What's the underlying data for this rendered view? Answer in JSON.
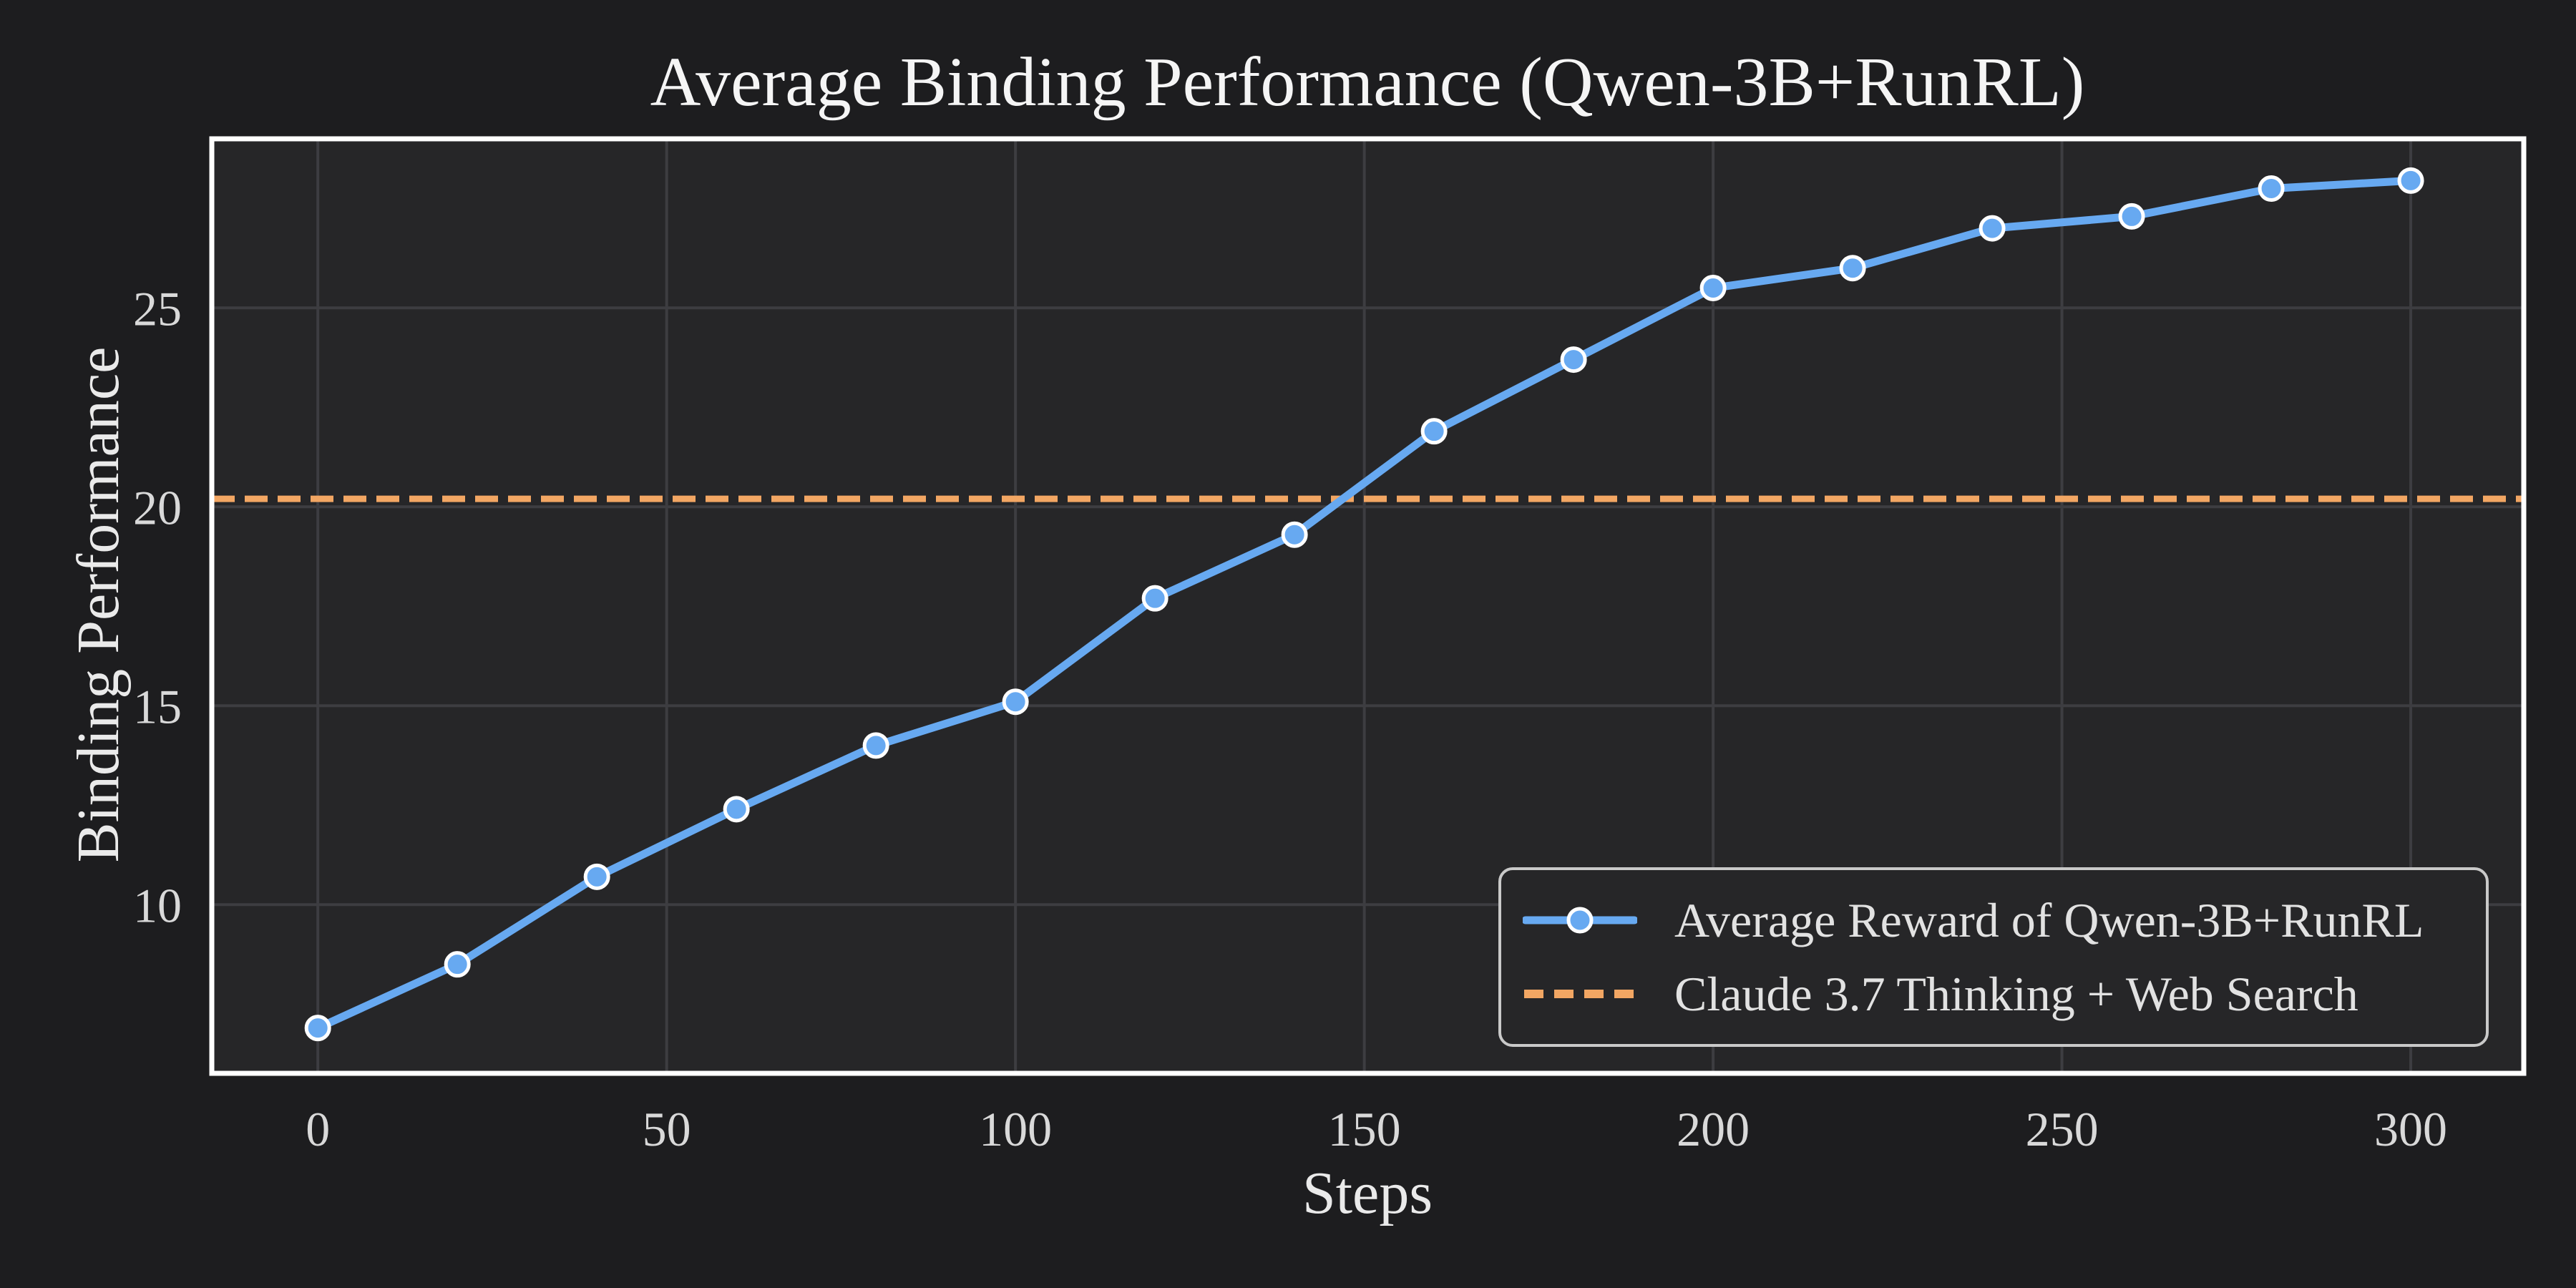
{
  "chart_data": {
    "type": "line",
    "title": "Average Binding Performance (Qwen-3B+RunRL)",
    "xlabel": "Steps",
    "ylabel": "Binding Performance",
    "x": [
      0,
      20,
      40,
      60,
      80,
      100,
      120,
      140,
      160,
      180,
      200,
      220,
      240,
      260,
      280,
      300
    ],
    "series": [
      {
        "name": "Average Reward of Qwen-3B+RunRL",
        "color": "#67A9F1",
        "marker": "circle",
        "marker_edge_color": "#FFFFFF",
        "values": [
          6.9,
          8.5,
          10.7,
          12.4,
          14.0,
          15.1,
          17.7,
          19.3,
          21.9,
          23.7,
          25.5,
          26.0,
          27.0,
          27.3,
          28.0,
          28.2
        ]
      }
    ],
    "baseline": {
      "name": "Claude 3.7 Thinking + Web Search",
      "value": 20.2,
      "color": "#F2A663",
      "style": "dashed"
    },
    "xticks": [
      0,
      50,
      100,
      150,
      200,
      250,
      300
    ],
    "yticks": [
      10,
      15,
      20,
      25
    ],
    "xlim": [
      -15.2,
      316.2
    ],
    "ylim": [
      5.76,
      29.25
    ],
    "grid": true,
    "legend_position": "lower right",
    "theme": {
      "figure_bg": "#1D1D1F",
      "axes_bg": "#262628",
      "grid_color": "#3D3D41",
      "spine_color": "#FFFFFF",
      "title_color": "#F5F5F5",
      "tick_color": "#D9D9D9",
      "label_color": "#EAEAEA"
    }
  }
}
